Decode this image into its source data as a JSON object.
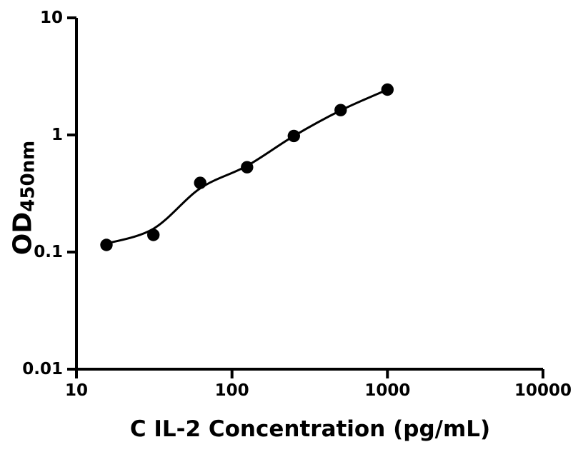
{
  "figure": {
    "background_color": "#ffffff",
    "ink_color": "#000000"
  },
  "chart_data": {
    "type": "scatter",
    "title": "",
    "xlabel": "C IL-2 Concentration (pg/mL)",
    "ylabel": {
      "main": "OD",
      "sub": "450nm"
    },
    "x_scale": "log",
    "y_scale": "log",
    "xlim": [
      10,
      10000
    ],
    "ylim": [
      0.01,
      10
    ],
    "grid": false,
    "legend": false,
    "x_ticks": [
      {
        "value": 10,
        "label": "10"
      },
      {
        "value": 100,
        "label": "100"
      },
      {
        "value": 1000,
        "label": "1000"
      },
      {
        "value": 10000,
        "label": "10000"
      }
    ],
    "y_ticks": [
      {
        "value": 10,
        "label": "10"
      },
      {
        "value": 1,
        "label": "1"
      },
      {
        "value": 0.1,
        "label": "0.1"
      },
      {
        "value": 0.01,
        "label": "0.01"
      }
    ],
    "series": [
      {
        "name": "standards",
        "type": "scatter",
        "marker": "filled-circle",
        "color": "#000000",
        "x": [
          15.6,
          31.25,
          62.5,
          125,
          250,
          500,
          1000
        ],
        "y": [
          0.115,
          0.14,
          0.39,
          0.53,
          0.98,
          1.63,
          2.44
        ]
      },
      {
        "name": "fit-curve",
        "type": "line",
        "color": "#000000",
        "x": [
          15.6,
          31.25,
          62.5,
          125,
          250,
          500,
          1000
        ],
        "y": [
          0.118,
          0.158,
          0.35,
          0.545,
          0.98,
          1.62,
          2.44
        ]
      }
    ]
  }
}
